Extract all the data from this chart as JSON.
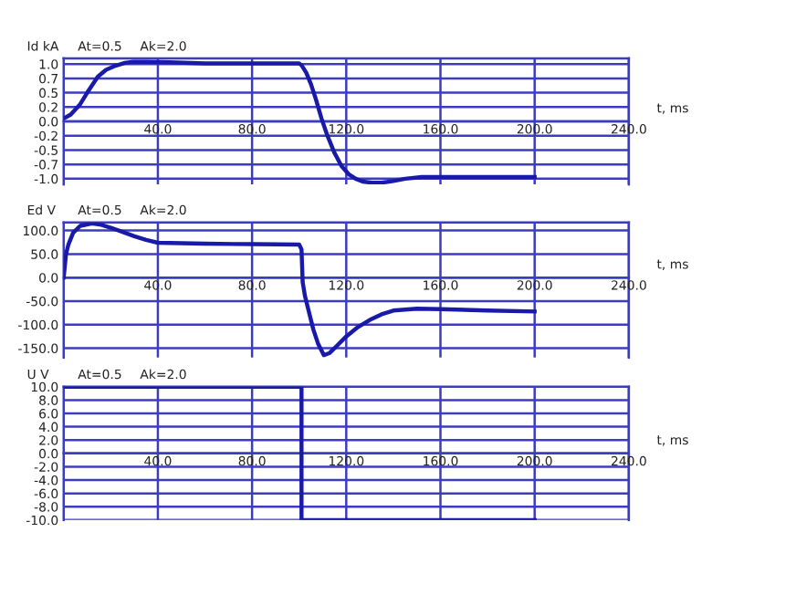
{
  "chart_data": [
    {
      "type": "line",
      "ylabel": "Id kA",
      "xlabel": "t, ms",
      "annotations": [
        "At=0.5",
        "Ak=2.0"
      ],
      "grid": true,
      "x": [
        0,
        3,
        7,
        10,
        14.5,
        18,
        22,
        26,
        29.5,
        35,
        45,
        60,
        80,
        100,
        101,
        103,
        105,
        107,
        109.5,
        112,
        115,
        118,
        121,
        124,
        127,
        131,
        135,
        140,
        145,
        152,
        170,
        200
      ],
      "series": [
        {
          "color": "#1a1aa8",
          "values": [
            0.05,
            0.12,
            0.3,
            0.5,
            0.78,
            0.9,
            0.97,
            1.02,
            1.04,
            1.04,
            1.03,
            1.01,
            1.01,
            1.01,
            0.98,
            0.85,
            0.65,
            0.4,
            0.05,
            -0.25,
            -0.55,
            -0.78,
            -0.92,
            -1.0,
            -1.05,
            -1.07,
            -1.07,
            -1.04,
            -1.0,
            -0.97,
            -0.97,
            -0.97
          ]
        }
      ],
      "xlim": [
        0,
        240
      ],
      "ylim": [
        -1.1,
        1.1
      ],
      "xticks": [
        {
          "value": 40,
          "label": "40.0"
        },
        {
          "value": 80,
          "label": "80.0"
        },
        {
          "value": 120,
          "label": "120.0"
        },
        {
          "value": 160,
          "label": "160.0"
        },
        {
          "value": 200,
          "label": "200.0"
        },
        {
          "value": 240,
          "label": "240.0"
        }
      ],
      "yticks": [
        {
          "value": 1.0,
          "label": "1.0"
        },
        {
          "value": 0.75,
          "label": "0.7"
        },
        {
          "value": 0.5,
          "label": "0.5"
        },
        {
          "value": 0.25,
          "label": "0.2"
        },
        {
          "value": 0,
          "label": "0.0"
        },
        {
          "value": -0.25,
          "label": "-0.2"
        },
        {
          "value": -0.5,
          "label": "-0.5"
        },
        {
          "value": -0.75,
          "label": "-0.7"
        },
        {
          "value": -1.0,
          "label": "-1.0"
        }
      ]
    },
    {
      "type": "line",
      "ylabel": "Ed V",
      "xlabel": "t, ms",
      "annotations": [
        "At=0.5",
        "Ak=2.0"
      ],
      "grid": true,
      "x": [
        0,
        1,
        2,
        4,
        7,
        12,
        16,
        20,
        25,
        30,
        35,
        40,
        60,
        80,
        100,
        101,
        101.5,
        102.5,
        104,
        106,
        108,
        110.5,
        113,
        116,
        120,
        125,
        130,
        135,
        140,
        150,
        160,
        180,
        200
      ],
      "series": [
        {
          "color": "#1a1aa8",
          "values": [
            0,
            50,
            70,
            95,
            110,
            115,
            112,
            106,
            97,
            88,
            80,
            74,
            72,
            71,
            70,
            60,
            -10,
            -40,
            -70,
            -110,
            -140,
            -165,
            -160,
            -145,
            -125,
            -105,
            -90,
            -78,
            -70,
            -66,
            -67,
            -70,
            -72
          ]
        }
      ],
      "xlim": [
        0,
        240
      ],
      "ylim": [
        -170,
        117
      ],
      "xticks": [
        {
          "value": 40,
          "label": "40.0"
        },
        {
          "value": 80,
          "label": "80.0"
        },
        {
          "value": 120,
          "label": "120.0"
        },
        {
          "value": 160,
          "label": "160.0"
        },
        {
          "value": 200,
          "label": "200.0"
        },
        {
          "value": 240,
          "label": "240.0"
        }
      ],
      "yticks": [
        {
          "value": 100,
          "label": "100.0"
        },
        {
          "value": 50,
          "label": "50.0"
        },
        {
          "value": 0,
          "label": "0.0"
        },
        {
          "value": -50,
          "label": "-50.0"
        },
        {
          "value": -100,
          "label": "-100.0"
        },
        {
          "value": -150,
          "label": "-150.0"
        }
      ]
    },
    {
      "type": "step",
      "ylabel": "U V",
      "xlabel": "t, ms",
      "annotations": [
        "At=0.5",
        "Ak=2.0"
      ],
      "grid": true,
      "x": [
        0,
        101,
        200
      ],
      "series": [
        {
          "color": "#1a1aa8",
          "values": [
            10,
            -10,
            -10
          ]
        }
      ],
      "xlim": [
        0,
        240
      ],
      "ylim": [
        -10,
        10
      ],
      "xticks": [
        {
          "value": 40,
          "label": "40.0"
        },
        {
          "value": 80,
          "label": "80.0"
        },
        {
          "value": 120,
          "label": "120.0"
        },
        {
          "value": 160,
          "label": "160.0"
        },
        {
          "value": 200,
          "label": "200.0"
        },
        {
          "value": 240,
          "label": "240.0"
        }
      ],
      "yticks": [
        {
          "value": 10,
          "label": "10.0"
        },
        {
          "value": 8,
          "label": "8.0"
        },
        {
          "value": 6,
          "label": "6.0"
        },
        {
          "value": 4,
          "label": "4.0"
        },
        {
          "value": 2,
          "label": "2.0"
        },
        {
          "value": 0,
          "label": "0.0"
        },
        {
          "value": -2,
          "label": "-2.0"
        },
        {
          "value": -4,
          "label": "-4.0"
        },
        {
          "value": -6,
          "label": "-6.0"
        },
        {
          "value": -8,
          "label": "-8.0"
        },
        {
          "value": -10,
          "label": "-10.0"
        }
      ]
    }
  ]
}
